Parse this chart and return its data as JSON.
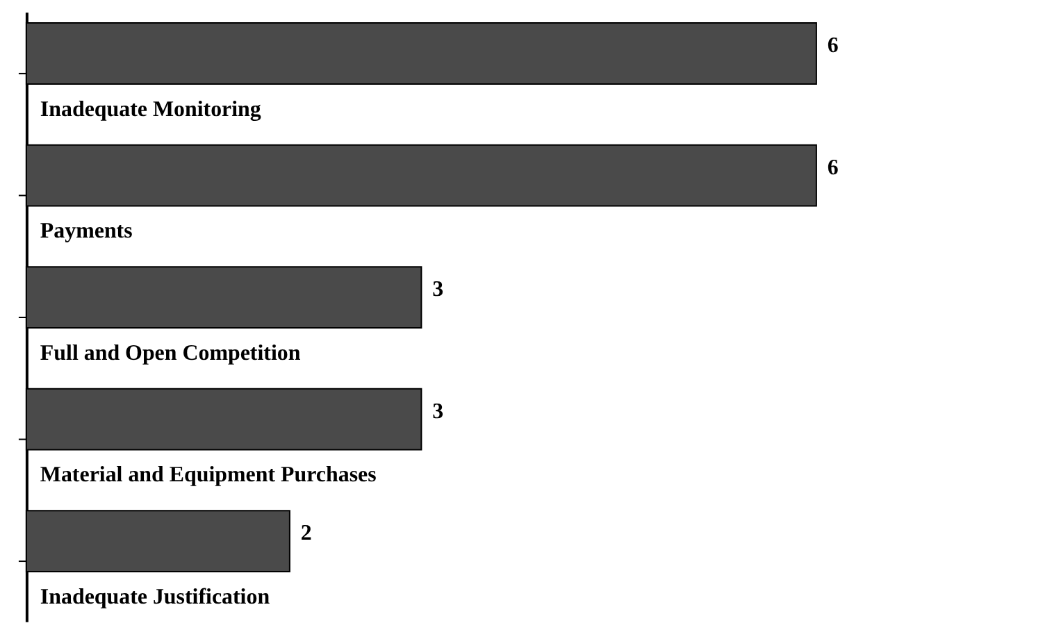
{
  "chart_data": {
    "type": "bar",
    "orientation": "horizontal",
    "categories": [
      "Inadequate Monitoring",
      "Payments",
      "Full and Open Competition",
      "Material and Equipment Purchases",
      "Inadequate Justification"
    ],
    "values": [
      6,
      6,
      3,
      3,
      2
    ],
    "color": "#4a4a4a",
    "data_labels": true,
    "grid": false
  }
}
